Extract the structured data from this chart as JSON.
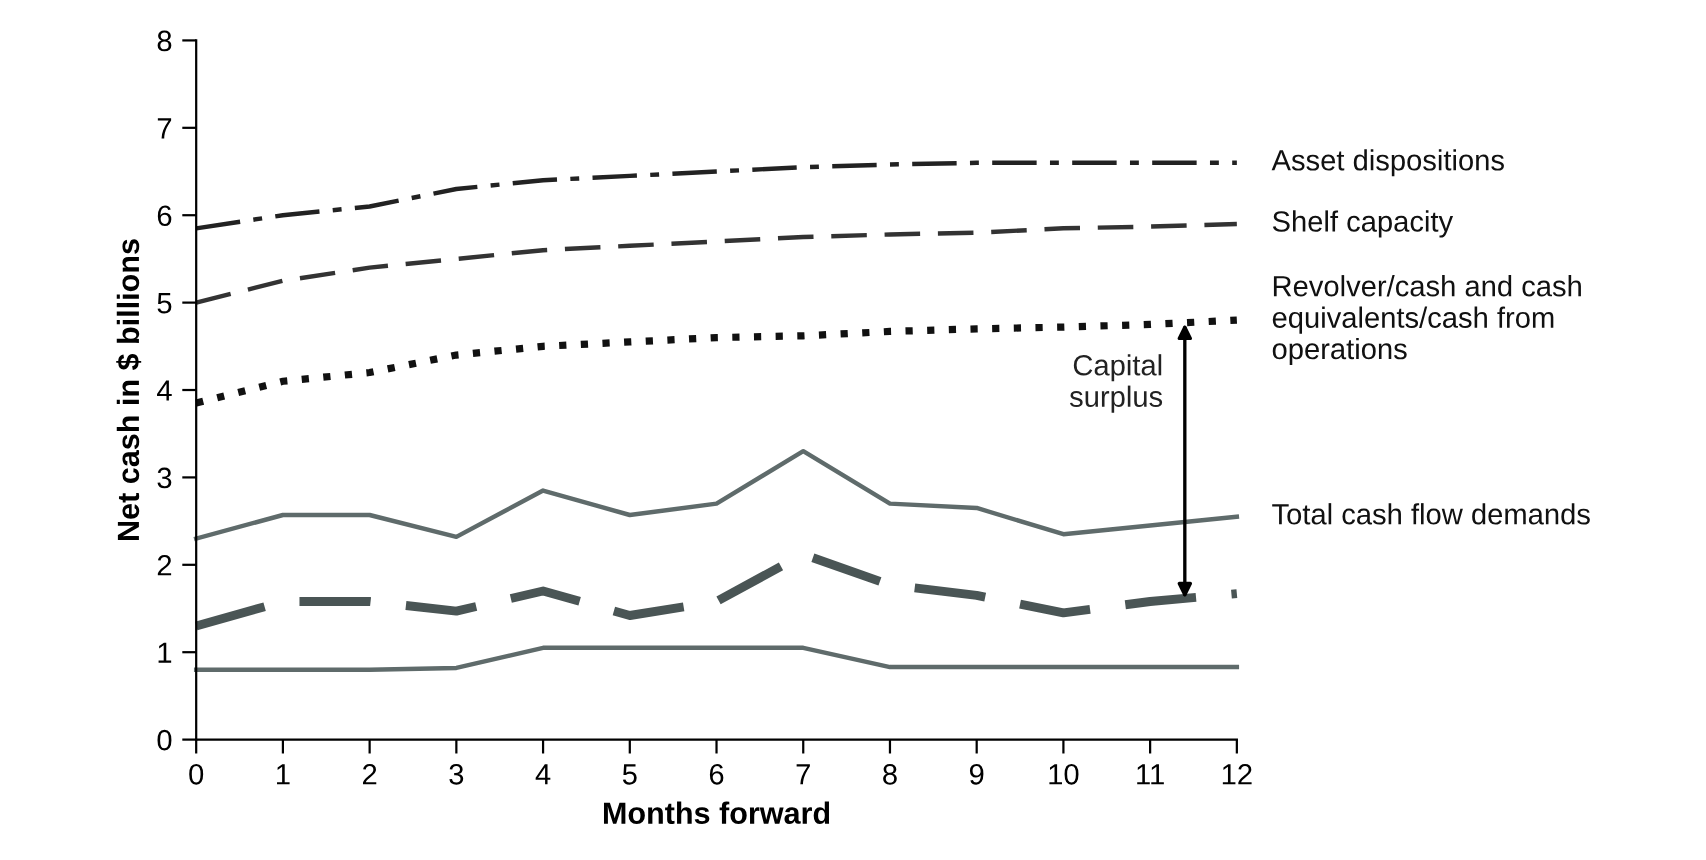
{
  "chart_data": {
    "type": "line",
    "xlabel": "Months forward",
    "ylabel": "Net cash in $ billions",
    "x": [
      0,
      1,
      2,
      3,
      4,
      5,
      6,
      7,
      8,
      9,
      10,
      11,
      12
    ],
    "xlim": [
      0,
      12
    ],
    "xticks": [
      0,
      1,
      2,
      3,
      4,
      5,
      6,
      7,
      8,
      9,
      10,
      11,
      12
    ],
    "ylim": [
      0,
      8
    ],
    "yticks": [
      0,
      1,
      2,
      3,
      4,
      5,
      6,
      7,
      8
    ],
    "grid": false,
    "legend": false,
    "marker": "none",
    "series": [
      {
        "name": "Asset dispositions",
        "color": "#222222",
        "line_style": "dashdot",
        "values": [
          5.85,
          6.0,
          6.1,
          6.3,
          6.4,
          6.45,
          6.5,
          6.55,
          6.58,
          6.6,
          6.6,
          6.6,
          6.6
        ]
      },
      {
        "name": "Shelf capacity",
        "color": "#333333",
        "line_style": "dashed",
        "values": [
          5.0,
          5.25,
          5.4,
          5.5,
          5.6,
          5.65,
          5.7,
          5.75,
          5.78,
          5.8,
          5.85,
          5.87,
          5.9
        ]
      },
      {
        "name": "Revolver/cash and cash\nequivalents/cash from\noperations",
        "color": "#111111",
        "line_style": "dotted",
        "values": [
          3.85,
          4.1,
          4.2,
          4.4,
          4.5,
          4.55,
          4.6,
          4.62,
          4.67,
          4.7,
          4.72,
          4.75,
          4.8
        ]
      },
      {
        "name": "Total cash flow demands",
        "color": "#5f6b6b",
        "line_style": "solid",
        "values": [
          2.3,
          2.57,
          2.57,
          2.32,
          2.85,
          2.57,
          2.7,
          3.3,
          2.7,
          2.65,
          2.35,
          2.45,
          2.55
        ]
      },
      {
        "color": "#4a5555",
        "line_style": "dashed",
        "values": [
          1.3,
          1.58,
          1.58,
          1.47,
          1.7,
          1.42,
          1.58,
          2.12,
          1.77,
          1.65,
          1.45,
          1.58,
          1.67
        ]
      },
      {
        "color": "#5f6b6b",
        "line_style": "solid",
        "values": [
          0.8,
          0.8,
          0.8,
          0.82,
          1.05,
          1.05,
          1.05,
          1.05,
          0.83,
          0.83,
          0.83,
          0.83,
          0.83
        ]
      }
    ],
    "annotations": [
      {
        "text": "Capital\nsurplus",
        "x": 11.4,
        "y": 4.76
      }
    ]
  }
}
